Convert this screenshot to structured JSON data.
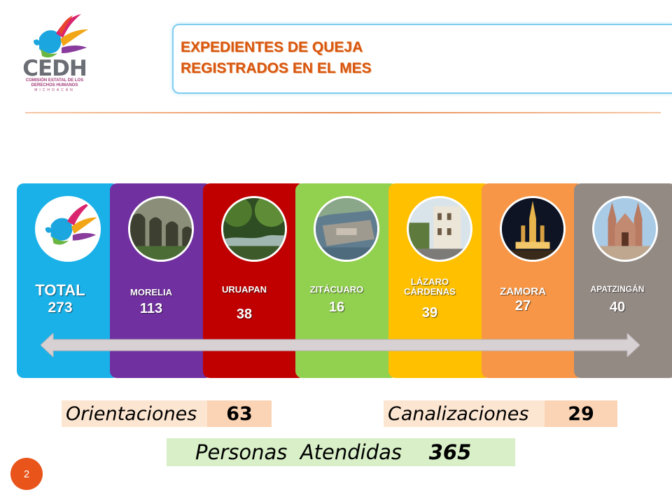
{
  "header": {
    "logo_text": "CEDH",
    "logo_subtitle_1": "COMISIÓN ESTATAL DE LOS",
    "logo_subtitle_2": "DERECHOS HUMANOS",
    "logo_subtitle_3": "MICHOACÁN",
    "title_line_1": "EXPEDIENTES DE QUEJA",
    "title_line_2": "REGISTRADOS EN EL MES"
  },
  "cards": [
    {
      "label": "TOTAL",
      "value": "273",
      "color": "#1ab1e8",
      "icon": "cedh-bird-logo"
    },
    {
      "label": "MORELIA",
      "value": "113",
      "color": "#7030a0",
      "icon": "aqueduct-photo"
    },
    {
      "label": "URUAPAN",
      "value": "38",
      "color": "#c00000",
      "icon": "river-photo"
    },
    {
      "label": "ZITÁCUARO",
      "value": "16",
      "color": "#92d050",
      "icon": "aerial-city-photo"
    },
    {
      "label_1": "LÁZARO",
      "label_2": "CÁRDENAS",
      "value": "39",
      "color": "#ffc000",
      "icon": "street-photo"
    },
    {
      "label": "ZAMORA",
      "value": "27",
      "color": "#f79646",
      "icon": "cathedral-night-photo"
    },
    {
      "label": "APATZINGÁN",
      "value": "40",
      "color": "#948a84",
      "icon": "cathedral-photo"
    }
  ],
  "stats": {
    "orientaciones_label": "Orientaciones",
    "orientaciones_value": "63",
    "canalizaciones_label": "Canalizaciones",
    "canalizaciones_value": "29",
    "personas_label": "Personas  Atendidas",
    "personas_value": "365"
  },
  "footer": {
    "page_number": "2"
  }
}
